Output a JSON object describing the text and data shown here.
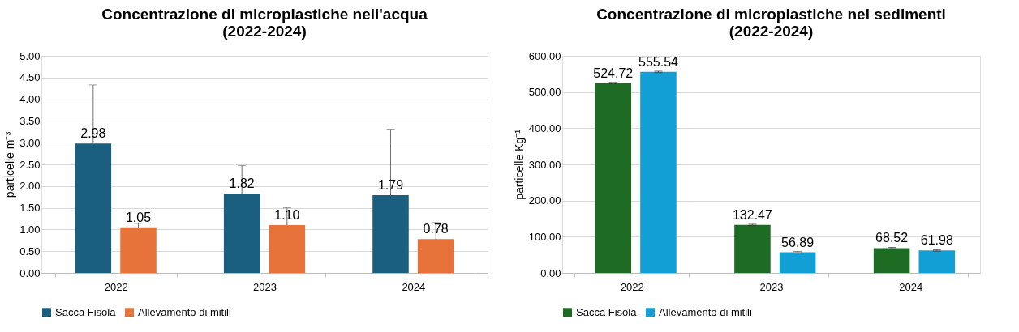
{
  "chart_data": [
    {
      "type": "bar",
      "title": "Concentrazione di microplastiche nell'acqua\n(2022-2024)",
      "ylabel": "particelle m⁻³",
      "categories": [
        "2022",
        "2023",
        "2024"
      ],
      "series": [
        {
          "name": "Sacca Fisola",
          "color": "#1a5e80",
          "values": [
            2.98,
            1.82,
            1.79
          ],
          "value_labels": [
            "2.98",
            "1.82",
            "1.79"
          ],
          "errors": [
            [
              2.98,
              4.33
            ],
            [
              1.82,
              2.47
            ],
            [
              1.79,
              3.31
            ]
          ]
        },
        {
          "name": "Allevamento di mitili",
          "color": "#e8733a",
          "values": [
            1.05,
            1.1,
            0.78
          ],
          "value_labels": [
            "1.05",
            "1.10",
            "0.78"
          ],
          "errors": [
            [
              1.05,
              1.14
            ],
            [
              1.1,
              1.5
            ],
            [
              0.78,
              1.16
            ]
          ]
        }
      ],
      "ylim": [
        0,
        5
      ],
      "yticks": [
        {
          "value": 0,
          "label": "0.00"
        },
        {
          "value": 0.5,
          "label": "0.50"
        },
        {
          "value": 1,
          "label": "1.00"
        },
        {
          "value": 1.5,
          "label": "1.50"
        },
        {
          "value": 2,
          "label": "2.00"
        },
        {
          "value": 2.5,
          "label": "2.50"
        },
        {
          "value": 3,
          "label": "3.00"
        },
        {
          "value": 3.5,
          "label": "3.50"
        },
        {
          "value": 4,
          "label": "4.00"
        },
        {
          "value": 4.5,
          "label": "4.50"
        },
        {
          "value": 5,
          "label": "5.00"
        }
      ],
      "grid": "y",
      "legend": "bottom"
    },
    {
      "type": "bar",
      "title": "Concentrazione di microplastiche nei sedimenti\n(2022-2024)",
      "ylabel": "particelle Kg⁻¹",
      "categories": [
        "2022",
        "2023",
        "2024"
      ],
      "series": [
        {
          "name": "Sacca Fisola",
          "color": "#1e6b24",
          "values": [
            524.72,
            132.47,
            68.52
          ],
          "value_labels": [
            "524.72",
            "132.47",
            "68.52"
          ],
          "errors": [
            2,
            2,
            2
          ]
        },
        {
          "name": "Allevamento di mitili",
          "color": "#119fd6",
          "values": [
            555.54,
            56.89,
            61.98
          ],
          "value_labels": [
            "555.54",
            "56.89",
            "61.98"
          ],
          "errors": [
            2,
            2,
            2
          ]
        }
      ],
      "ylim": [
        0,
        600
      ],
      "yticks": [
        {
          "value": 0,
          "label": "0.00"
        },
        {
          "value": 100,
          "label": "100.00"
        },
        {
          "value": 200,
          "label": "200.00"
        },
        {
          "value": 300,
          "label": "300.00"
        },
        {
          "value": 400,
          "label": "400.00"
        },
        {
          "value": 500,
          "label": "500.00"
        },
        {
          "value": 600,
          "label": "600.00"
        }
      ],
      "grid": "y",
      "legend": "bottom"
    }
  ]
}
